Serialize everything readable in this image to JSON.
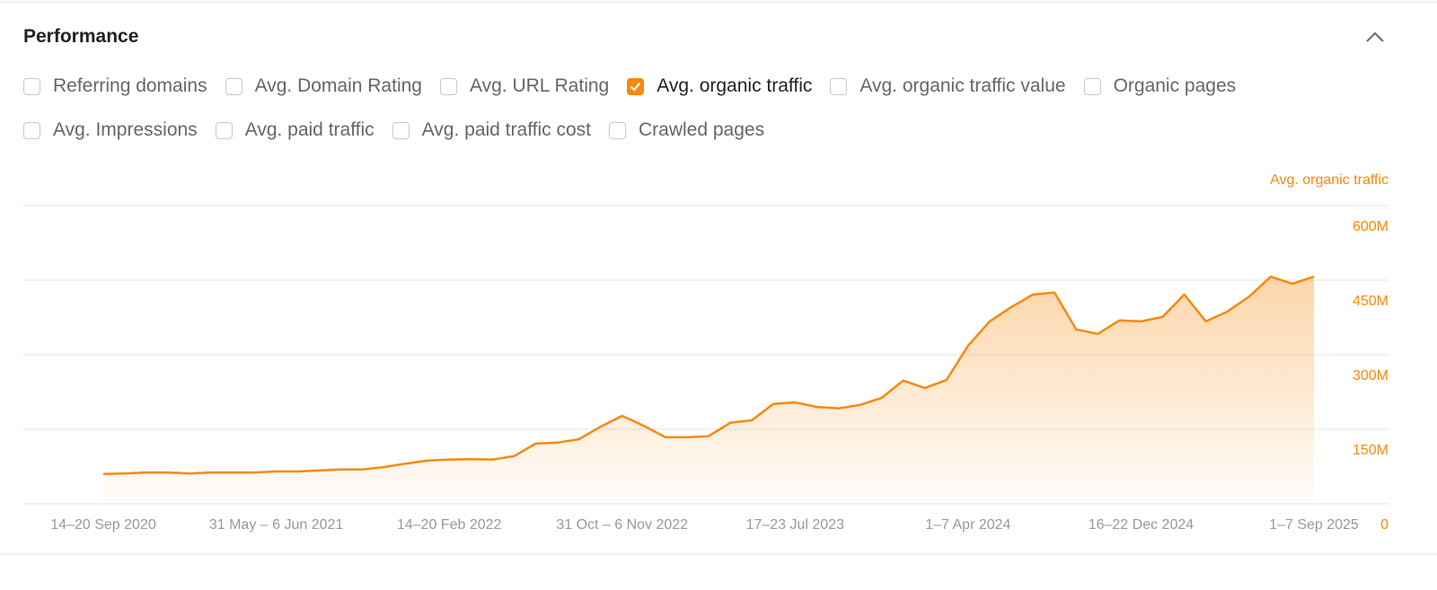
{
  "header": {
    "title": "Performance"
  },
  "metrics": [
    {
      "label": "Referring domains",
      "checked": false
    },
    {
      "label": "Avg. Domain Rating",
      "checked": false
    },
    {
      "label": "Avg. URL Rating",
      "checked": false
    },
    {
      "label": "Avg. organic traffic",
      "checked": true
    },
    {
      "label": "Avg. organic traffic value",
      "checked": false
    },
    {
      "label": "Organic pages",
      "checked": false
    },
    {
      "label": "Avg. Impressions",
      "checked": false
    },
    {
      "label": "Avg. paid traffic",
      "checked": false
    },
    {
      "label": "Avg. paid traffic cost",
      "checked": false
    },
    {
      "label": "Crawled pages",
      "checked": false
    }
  ],
  "chart_data": {
    "type": "line",
    "grid": true,
    "categories": [
      "14–20 Sep 2020",
      null,
      null,
      null,
      null,
      null,
      null,
      null,
      "31 May – 6 Jun 2021",
      null,
      null,
      null,
      null,
      null,
      null,
      null,
      "14–20 Feb 2022",
      null,
      null,
      null,
      null,
      null,
      null,
      null,
      "31 Oct – 6 Nov 2022",
      null,
      null,
      null,
      null,
      null,
      null,
      null,
      "17–23 Jul 2023",
      null,
      null,
      null,
      null,
      null,
      null,
      null,
      "1–7 Apr 2024",
      null,
      null,
      null,
      null,
      null,
      null,
      null,
      "16–22 Dec 2024",
      null,
      null,
      null,
      null,
      null,
      null,
      null,
      "1–7 Sep 2025"
    ],
    "series": [
      {
        "name": "Avg. organic traffic",
        "color": "#f7890c",
        "values": [
          60,
          61,
          63,
          63,
          61,
          63,
          63,
          63,
          65,
          65,
          67,
          69,
          69,
          74,
          81,
          87,
          89,
          90,
          89,
          96,
          121,
          123,
          130,
          155,
          177,
          157,
          134,
          134,
          136,
          163,
          168,
          201,
          204,
          195,
          192,
          199,
          213,
          248,
          233,
          249,
          318,
          367,
          396,
          421,
          425,
          351,
          342,
          369,
          367,
          376,
          421,
          367,
          387,
          417,
          457,
          443,
          457
        ]
      }
    ],
    "ylim": [
      0,
      600
    ],
    "yticks": [
      0,
      {
        "value": 150,
        "label": "150M"
      },
      {
        "value": 300,
        "label": "300M"
      },
      {
        "value": 450,
        "label": "450M"
      },
      {
        "value": 600,
        "label": "600M"
      }
    ]
  }
}
